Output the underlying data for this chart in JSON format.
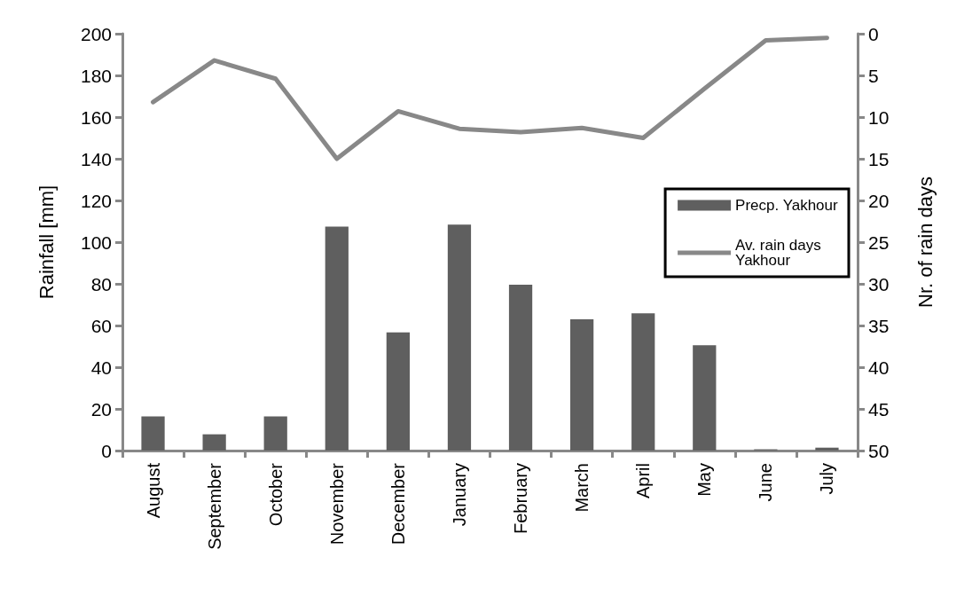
{
  "chart_data": {
    "type": "bar",
    "ylabel": "Rainfall [mm]",
    "y2label": "Nr. of rain days",
    "categories": [
      "August",
      "September",
      "October",
      "November",
      "December",
      "January",
      "February",
      "March",
      "April",
      "May",
      "June",
      "July"
    ],
    "series": [
      {
        "name": "Precp. Yakhour",
        "color": "#5f5f5f",
        "values": [
          16.4,
          7.8,
          16.4,
          107.4,
          56.7,
          108.4,
          79.6,
          63,
          65.9,
          50.5,
          0.6,
          1.4
        ]
      },
      {
        "name": "Av. rain days Yakhour",
        "type": "line",
        "axis": "y2",
        "color": "#888888",
        "values": [
          8.2,
          3.2,
          5.4,
          15.0,
          9.3,
          11.4,
          11.8,
          11.3,
          12.5,
          6.6,
          0.8,
          0.5
        ]
      }
    ],
    "ylim": [
      0,
      200
    ],
    "yticks": [
      0,
      20,
      40,
      60,
      80,
      100,
      120,
      140,
      160,
      180,
      200
    ],
    "y2lim": [
      50,
      0
    ],
    "y2ticks": [
      0,
      5,
      10,
      15,
      20,
      25,
      30,
      35,
      40,
      45,
      50
    ],
    "grid": false,
    "legend": "right",
    "marker": "none",
    "line_style": "solid"
  }
}
